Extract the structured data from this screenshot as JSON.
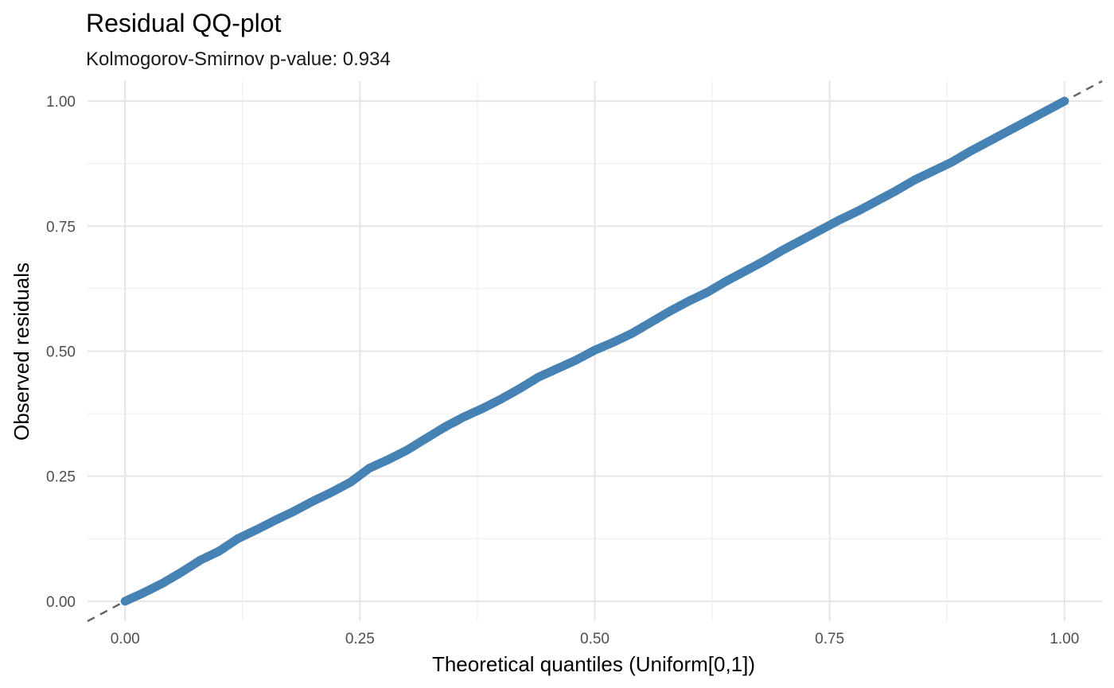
{
  "chart_data": {
    "type": "scatter",
    "title": "Residual QQ-plot",
    "subtitle": "Kolmogorov-Smirnov p-value: 0.934",
    "xlabel": "Theoretical quantiles (Uniform[0,1])",
    "ylabel": "Observed residuals",
    "xlim": [
      -0.04,
      1.04
    ],
    "ylim": [
      -0.04,
      1.04
    ],
    "x_ticks": [
      0.0,
      0.25,
      0.5,
      0.75,
      1.0
    ],
    "x_tick_labels": [
      "0.00",
      "0.25",
      "0.50",
      "0.75",
      "1.00"
    ],
    "y_ticks": [
      0.0,
      0.25,
      0.5,
      0.75,
      1.0
    ],
    "y_tick_labels": [
      "0.00",
      "0.25",
      "0.50",
      "0.75",
      "1.00"
    ],
    "grid": true,
    "reference_line": {
      "slope": 1,
      "intercept": 0,
      "style": "dashed",
      "color": "#666666"
    },
    "point_color": "#4682B4",
    "series": [
      {
        "x": [
          0.0,
          0.02,
          0.04,
          0.06,
          0.08,
          0.1,
          0.12,
          0.14,
          0.16,
          0.18,
          0.2,
          0.22,
          0.24,
          0.26,
          0.28,
          0.3,
          0.32,
          0.34,
          0.36,
          0.38,
          0.4,
          0.42,
          0.44,
          0.46,
          0.48,
          0.5,
          0.52,
          0.54,
          0.56,
          0.58,
          0.6,
          0.62,
          0.64,
          0.66,
          0.68,
          0.7,
          0.72,
          0.74,
          0.76,
          0.78,
          0.8,
          0.82,
          0.84,
          0.86,
          0.88,
          0.9,
          0.92,
          0.94,
          0.96,
          0.98,
          1.0
        ],
        "values": [
          0.0,
          0.017,
          0.036,
          0.058,
          0.082,
          0.1,
          0.125,
          0.143,
          0.162,
          0.18,
          0.2,
          0.218,
          0.238,
          0.266,
          0.283,
          0.302,
          0.325,
          0.348,
          0.368,
          0.385,
          0.404,
          0.425,
          0.448,
          0.465,
          0.482,
          0.502,
          0.518,
          0.536,
          0.558,
          0.58,
          0.6,
          0.618,
          0.64,
          0.66,
          0.68,
          0.702,
          0.722,
          0.742,
          0.762,
          0.78,
          0.8,
          0.82,
          0.842,
          0.86,
          0.878,
          0.9,
          0.92,
          0.94,
          0.96,
          0.98,
          1.0
        ]
      }
    ]
  }
}
